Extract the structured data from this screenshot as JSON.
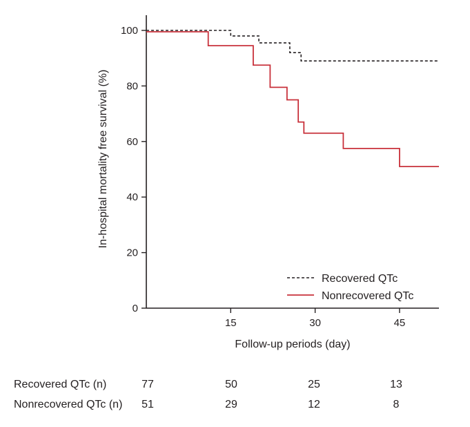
{
  "chart_data": {
    "type": "line",
    "subtype": "kaplan-meier step",
    "xlabel": "Follow-up periods (day)",
    "ylabel": "In-hospital mortality free survival (%)",
    "xlim": [
      0,
      52
    ],
    "ylim": [
      0,
      100
    ],
    "x_ticks": [
      15,
      30,
      45
    ],
    "y_ticks": [
      0,
      20,
      40,
      60,
      80,
      100
    ],
    "legend_position": "bottom-right",
    "series": [
      {
        "name": "Recovered QTc",
        "color": "#231f20",
        "style": "dashed",
        "steps": [
          {
            "x": 0,
            "y": 100
          },
          {
            "x": 15,
            "y": 98
          },
          {
            "x": 20,
            "y": 95.5
          },
          {
            "x": 25.5,
            "y": 92
          },
          {
            "x": 27.5,
            "y": 89
          },
          {
            "x": 52,
            "y": 89
          }
        ]
      },
      {
        "name": "Nonrecovered QTc",
        "color": "#c8303a",
        "style": "solid",
        "steps": [
          {
            "x": 0,
            "y": 99.5
          },
          {
            "x": 11,
            "y": 94.5
          },
          {
            "x": 19,
            "y": 87.5
          },
          {
            "x": 22,
            "y": 79.5
          },
          {
            "x": 25,
            "y": 75
          },
          {
            "x": 27,
            "y": 67
          },
          {
            "x": 28,
            "y": 63
          },
          {
            "x": 35,
            "y": 57.5
          },
          {
            "x": 45,
            "y": 51
          },
          {
            "x": 52,
            "y": 51
          }
        ]
      }
    ]
  },
  "risk_table": {
    "time_points": [
      0,
      15,
      30,
      45
    ],
    "rows": [
      {
        "label": "Recovered QTc (n)",
        "values": [
          "77",
          "50",
          "25",
          "13"
        ]
      },
      {
        "label": "Nonrecovered QTc (n)",
        "values": [
          "51",
          "29",
          "12",
          "8"
        ]
      }
    ]
  }
}
